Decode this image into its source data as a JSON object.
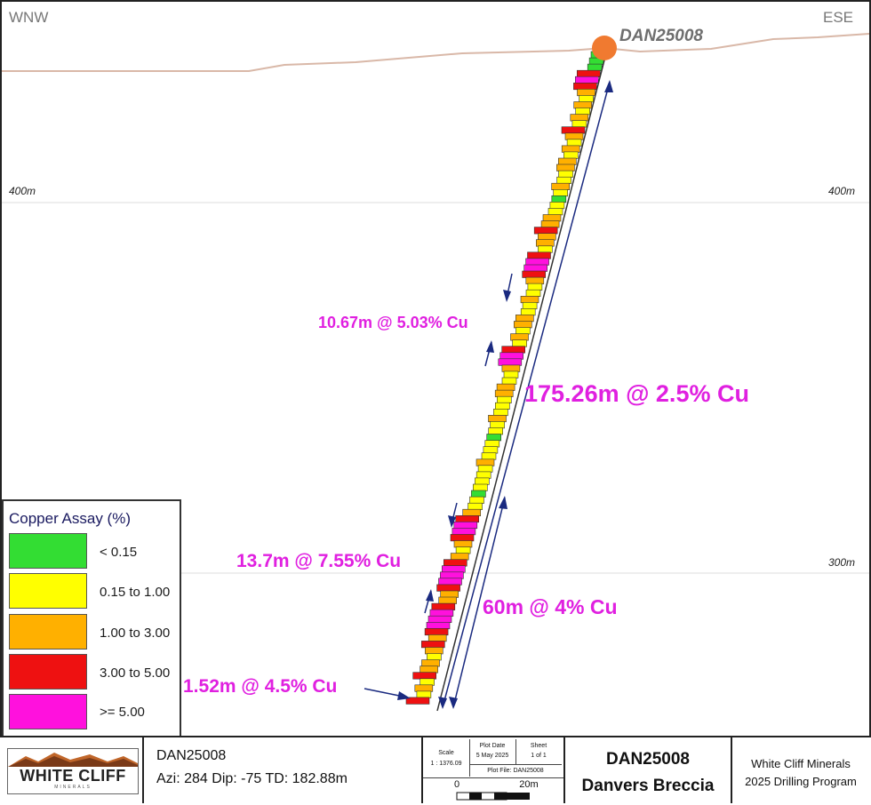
{
  "section": {
    "dir_left": "WNW",
    "dir_right": "ESE",
    "hole_label": "DAN25008",
    "elev_400_left": "400m",
    "elev_400_right": "400m",
    "elev_300_right": "300m"
  },
  "intercepts": {
    "main": "175.26m @ 2.5% Cu",
    "upper": "10.67m @ 5.03% Cu",
    "lower_60": "60m @ 4% Cu",
    "lower_13": "13.7m @ 7.55% Cu",
    "bottom": "1.52m @ 4.5% Cu"
  },
  "legend": {
    "title": "Copper Assay (%)",
    "items": [
      {
        "label": "< 0.15",
        "color": "#33dd33"
      },
      {
        "label": "0.15 to 1.00",
        "color": "#ffff00"
      },
      {
        "label": "1.00 to 3.00",
        "color": "#ffb000"
      },
      {
        "label": "3.00 to 5.00",
        "color": "#ee1111"
      },
      {
        "label": ">= 5.00",
        "color": "#ff11dd"
      }
    ]
  },
  "assay_colors": [
    "#33dd33",
    "#ffff00",
    "#ffb000",
    "#ee1111",
    "#ff11dd"
  ],
  "assay_intervals": [
    0,
    0,
    0,
    3,
    4,
    3,
    2,
    1,
    2,
    1,
    2,
    1,
    3,
    2,
    1,
    2,
    1,
    2,
    2,
    1,
    1,
    2,
    1,
    0,
    1,
    1,
    2,
    2,
    3,
    2,
    2,
    1,
    3,
    4,
    4,
    3,
    2,
    1,
    1,
    2,
    1,
    1,
    2,
    2,
    1,
    2,
    1,
    3,
    4,
    4,
    2,
    1,
    1,
    2,
    2,
    1,
    1,
    1,
    2,
    1,
    1,
    0,
    1,
    1,
    1,
    2,
    1,
    1,
    1,
    1,
    0,
    1,
    1,
    2,
    3,
    4,
    4,
    3,
    2,
    1,
    2,
    3,
    4,
    4,
    4,
    3,
    2,
    2,
    3,
    4,
    4,
    4,
    3,
    2,
    3,
    2,
    1,
    2,
    2,
    3,
    1,
    2,
    1,
    3
  ],
  "titleblock": {
    "logo_text": "WHITE CLIFF",
    "logo_sub": "MINERALS",
    "hole_id": "DAN25008",
    "hole_params": "Azi: 284  Dip: -75  TD: 182.88m",
    "scale_label": "Scale",
    "scale_value": "1 : 1376.09",
    "plot_date_label": "Plot Date",
    "plot_date_value": "5 May 2025",
    "sheet_label": "Sheet",
    "sheet_value": "1 of 1",
    "plot_file": "Plot File: DAN25008",
    "bar_zero": "0",
    "bar_end": "20m",
    "project_hole": "DAN25008",
    "project_name": "Danvers Breccia",
    "company": "White Cliff Minerals",
    "program": "2025 Drilling Program"
  }
}
